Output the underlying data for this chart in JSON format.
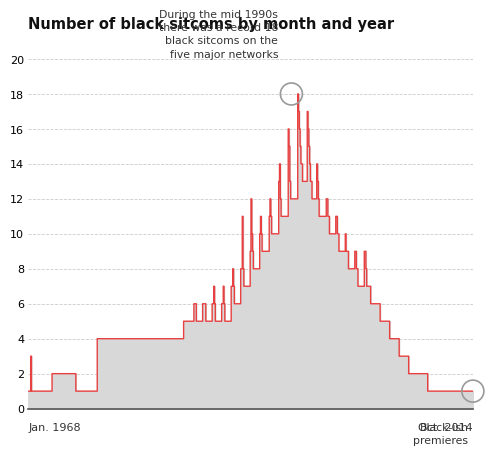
{
  "title": "Number of black sitcoms by month and year",
  "title_fontsize": 10.5,
  "xlabel_left": "Jan. 1968",
  "xlabel_right": "Oct. 2014",
  "ylim": [
    0,
    20
  ],
  "yticks": [
    0,
    2,
    4,
    6,
    8,
    10,
    12,
    14,
    16,
    18,
    20
  ],
  "fill_color": "#d8d8d8",
  "line_color": "#e84040",
  "background_color": "#ffffff",
  "annotation_text": "During the mid 1990s\nthere was a record 18\nblack sitcoms on the\nfive major networks",
  "annotation2_line1": "Black-ish",
  "annotation2_line2": "premieres",
  "grid_color": "#cccccc",
  "values": [
    1,
    1,
    1,
    3,
    1,
    1,
    1,
    1,
    1,
    1,
    1,
    1,
    1,
    1,
    1,
    1,
    1,
    1,
    1,
    1,
    1,
    1,
    1,
    1,
    1,
    1,
    1,
    1,
    1,
    1,
    2,
    2,
    2,
    2,
    2,
    2,
    2,
    2,
    2,
    2,
    2,
    2,
    2,
    2,
    2,
    2,
    2,
    2,
    2,
    2,
    2,
    2,
    2,
    2,
    2,
    2,
    2,
    2,
    2,
    2,
    1,
    1,
    1,
    1,
    1,
    1,
    1,
    1,
    1,
    1,
    1,
    1,
    1,
    1,
    1,
    1,
    1,
    1,
    1,
    1,
    1,
    1,
    1,
    1,
    1,
    1,
    1,
    4,
    4,
    4,
    4,
    4,
    4,
    4,
    4,
    4,
    4,
    4,
    4,
    4,
    4,
    4,
    4,
    4,
    4,
    4,
    4,
    4,
    4,
    4,
    4,
    4,
    4,
    4,
    4,
    4,
    4,
    4,
    4,
    4,
    4,
    4,
    4,
    4,
    4,
    4,
    4,
    4,
    4,
    4,
    4,
    4,
    4,
    4,
    4,
    4,
    4,
    4,
    4,
    4,
    4,
    4,
    4,
    4,
    4,
    4,
    4,
    4,
    4,
    4,
    4,
    4,
    4,
    4,
    4,
    4,
    4,
    4,
    4,
    4,
    4,
    4,
    4,
    4,
    4,
    4,
    4,
    4,
    4,
    4,
    4,
    4,
    4,
    4,
    4,
    4,
    4,
    4,
    4,
    4,
    4,
    4,
    4,
    4,
    4,
    4,
    4,
    4,
    4,
    4,
    4,
    4,
    4,
    4,
    4,
    4,
    5,
    5,
    5,
    5,
    5,
    5,
    5,
    5,
    5,
    5,
    5,
    5,
    5,
    6,
    6,
    6,
    5,
    5,
    5,
    5,
    5,
    5,
    5,
    5,
    6,
    6,
    6,
    6,
    5,
    5,
    5,
    5,
    5,
    5,
    5,
    5,
    6,
    6,
    7,
    6,
    5,
    5,
    5,
    5,
    5,
    5,
    5,
    5,
    6,
    6,
    7,
    6,
    5,
    5,
    5,
    5,
    5,
    5,
    5,
    5,
    7,
    7,
    8,
    7,
    6,
    6,
    6,
    6,
    6,
    6,
    6,
    6,
    8,
    8,
    11,
    8,
    7,
    7,
    7,
    7,
    7,
    7,
    7,
    7,
    9,
    12,
    10,
    9,
    8,
    8,
    8,
    8,
    8,
    8,
    8,
    8,
    10,
    11,
    10,
    9,
    9,
    9,
    9,
    9,
    9,
    9,
    9,
    9,
    11,
    12,
    11,
    10,
    10,
    10,
    10,
    10,
    10,
    10,
    10,
    10,
    13,
    14,
    12,
    11,
    11,
    11,
    11,
    11,
    11,
    11,
    11,
    11,
    16,
    15,
    13,
    12,
    12,
    12,
    12,
    12,
    12,
    12,
    12,
    12,
    18,
    17,
    16,
    15,
    14,
    14,
    13,
    13,
    13,
    13,
    13,
    13,
    17,
    16,
    15,
    14,
    13,
    13,
    12,
    12,
    12,
    12,
    12,
    12,
    14,
    13,
    12,
    11,
    11,
    11,
    11,
    11,
    11,
    11,
    11,
    11,
    12,
    12,
    11,
    11,
    10,
    10,
    10,
    10,
    10,
    10,
    10,
    10,
    11,
    11,
    10,
    10,
    9,
    9,
    9,
    9,
    9,
    9,
    9,
    9,
    10,
    9,
    9,
    9,
    8,
    8,
    8,
    8,
    8,
    8,
    8,
    8,
    9,
    9,
    8,
    8,
    7,
    7,
    7,
    7,
    7,
    7,
    7,
    7,
    9,
    9,
    8,
    7,
    7,
    7,
    7,
    7,
    6,
    6,
    6,
    6,
    6,
    6,
    6,
    6,
    6,
    6,
    6,
    6,
    5,
    5,
    5,
    5,
    5,
    5,
    5,
    5,
    5,
    5,
    5,
    5,
    4,
    4,
    4,
    4,
    4,
    4,
    4,
    4,
    4,
    4,
    4,
    4,
    3,
    3,
    3,
    3,
    3,
    3,
    3,
    3,
    3,
    3,
    3,
    3,
    2,
    2,
    2,
    2,
    2,
    2,
    2,
    2,
    2,
    2,
    2,
    2,
    2,
    2,
    2,
    2,
    2,
    2,
    2,
    2,
    2,
    2,
    2,
    2,
    1,
    1,
    1,
    1,
    1,
    1,
    1,
    1,
    1,
    1,
    1,
    1,
    1,
    1,
    1,
    1,
    1,
    1,
    1,
    1,
    1,
    1,
    1,
    1,
    1,
    1,
    1,
    1,
    1,
    1,
    1,
    1,
    1,
    1,
    1,
    1,
    1,
    1,
    1,
    1,
    1,
    1,
    1,
    1,
    1,
    1,
    1,
    1,
    1,
    1,
    1,
    1,
    1,
    1,
    1,
    1,
    1,
    1
  ],
  "peak_year_idx": 332,
  "peak_val": 18,
  "blackish_idx": 561,
  "blackish_val": 1
}
